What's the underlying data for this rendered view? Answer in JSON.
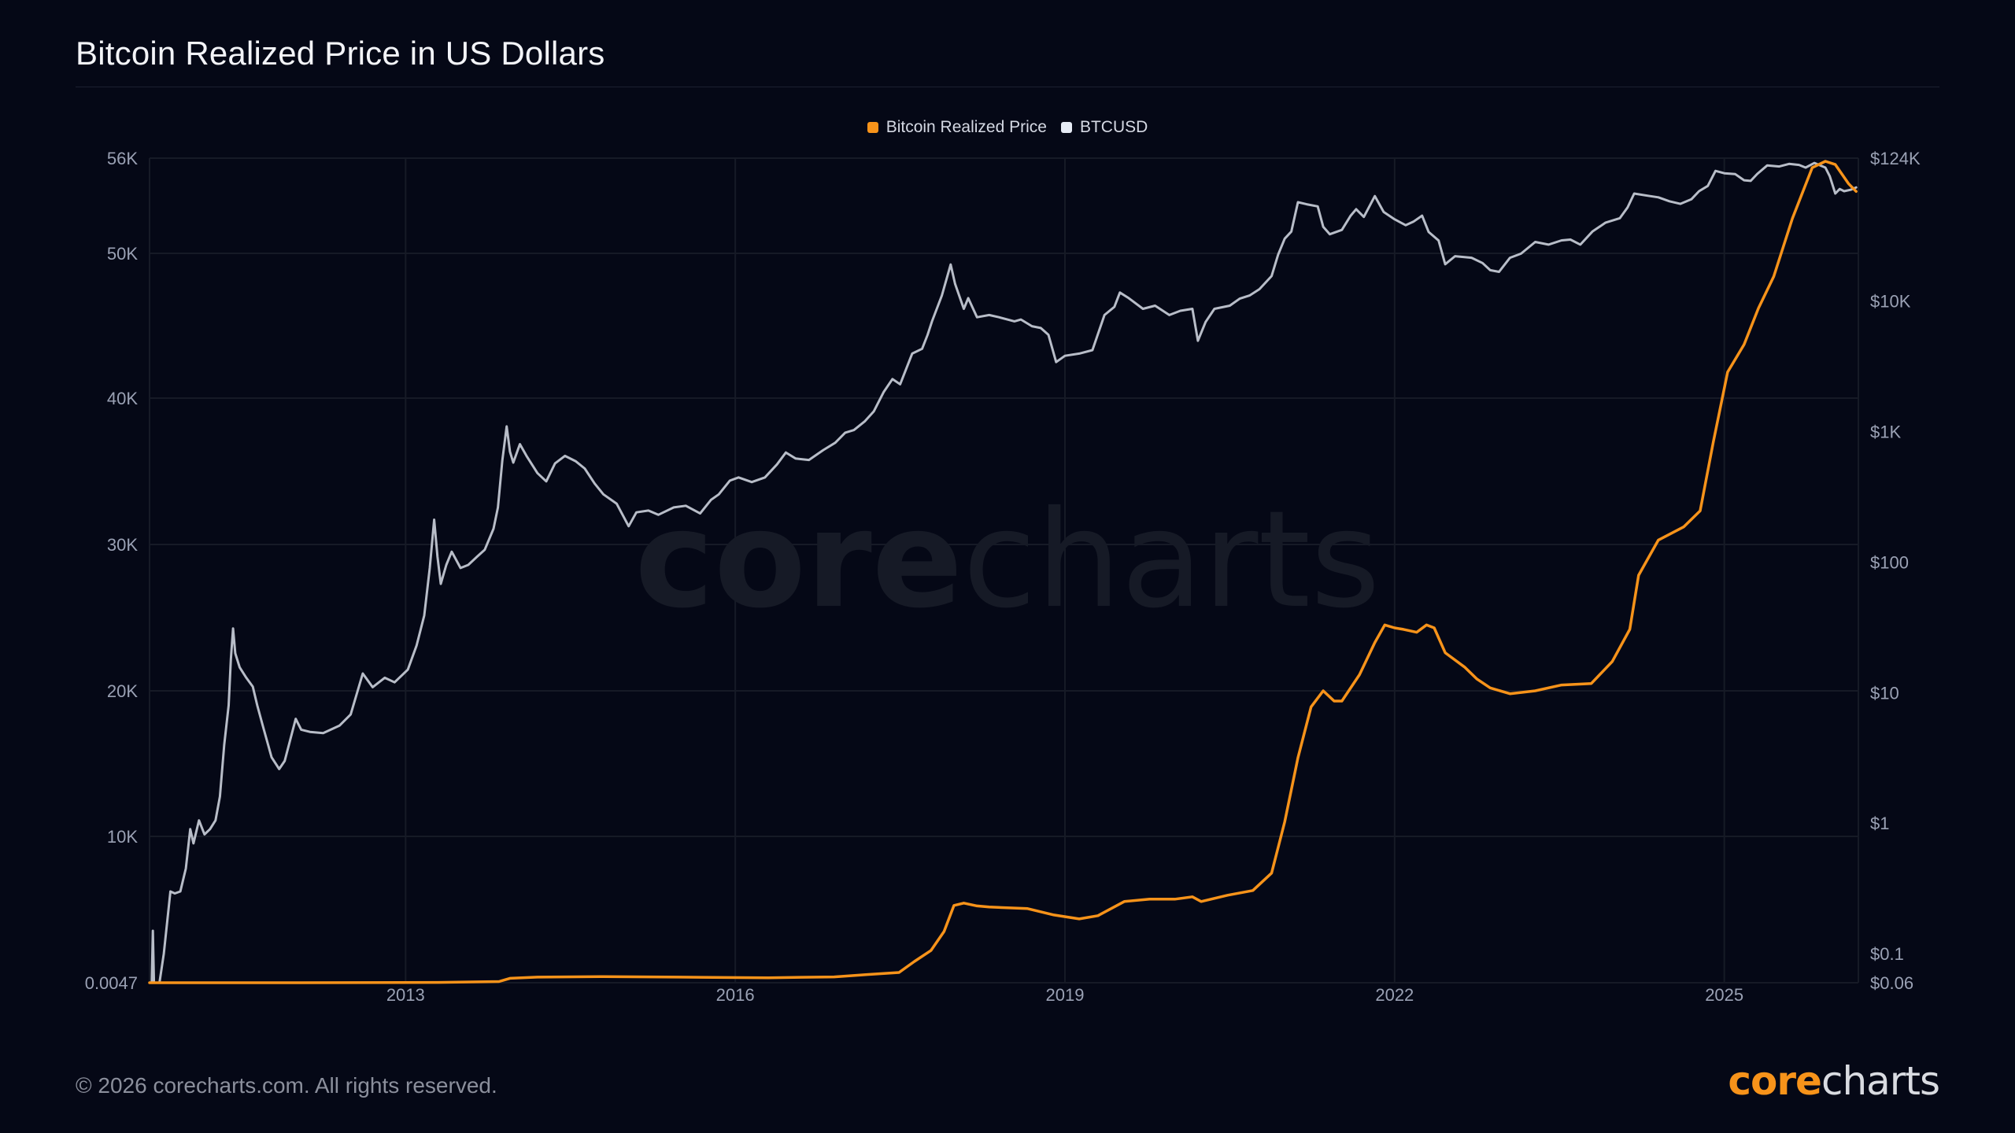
{
  "title": "Bitcoin Realized Price in US Dollars",
  "footer": "© 2026 corecharts.com. All rights reserved.",
  "brand": {
    "part1": "core",
    "part2": "charts"
  },
  "watermark": {
    "part1": "core",
    "part2": "charts"
  },
  "colors": {
    "realized": "#f7931a",
    "btcusd": "#b8bdc8",
    "background": "#050816",
    "grid": "#161a26",
    "brand_light": "#d9dbe1"
  },
  "chart_data": {
    "type": "line",
    "title": "Bitcoin Realized Price in US Dollars",
    "legend": {
      "placement": "top-center",
      "entries": [
        "Bitcoin Realized Price",
        "BTCUSD"
      ]
    },
    "x_axis": {
      "type": "time",
      "range": [
        2010.67,
        2026.22
      ],
      "ticks": [
        2013,
        2016,
        2019,
        2022,
        2025
      ],
      "tick_labels": [
        "2013",
        "2016",
        "2019",
        "2022",
        "2025"
      ]
    },
    "y_left": {
      "type": "linear",
      "ticks": [
        0.0047,
        10000,
        20000,
        30000,
        40000,
        50000,
        56000
      ],
      "tick_labels": [
        "0.0047",
        "10K",
        "20K",
        "30K",
        "40K",
        "50K",
        "56K"
      ],
      "grid": true
    },
    "y_right": {
      "type": "log",
      "ticks": [
        0.06,
        0.1,
        1,
        10,
        100,
        1000,
        10000,
        124000
      ],
      "tick_labels": [
        "$0.06",
        "$0.1",
        "$1",
        "$10",
        "$100",
        "$1K",
        "$10K",
        "$124K"
      ],
      "range": [
        0.06,
        124000
      ]
    },
    "series": [
      {
        "name": "Bitcoin Realized Price",
        "axis": "left",
        "color": "#f7931a",
        "points": [
          [
            2010.67,
            0.0047
          ],
          [
            2011.5,
            2
          ],
          [
            2012.5,
            5
          ],
          [
            2013.3,
            20
          ],
          [
            2013.85,
            80
          ],
          [
            2013.95,
            300
          ],
          [
            2014.2,
            380
          ],
          [
            2014.8,
            420
          ],
          [
            2015.5,
            380
          ],
          [
            2016.3,
            340
          ],
          [
            2016.9,
            400
          ],
          [
            2017.2,
            560
          ],
          [
            2017.49,
            700
          ],
          [
            2017.63,
            1450
          ],
          [
            2017.78,
            2200
          ],
          [
            2017.9,
            3500
          ],
          [
            2017.99,
            5280
          ],
          [
            2018.08,
            5440
          ],
          [
            2018.2,
            5250
          ],
          [
            2018.31,
            5170
          ],
          [
            2018.66,
            5065
          ],
          [
            2018.9,
            4630
          ],
          [
            2019.13,
            4360
          ],
          [
            2019.3,
            4580
          ],
          [
            2019.54,
            5550
          ],
          [
            2019.77,
            5710
          ],
          [
            2020.0,
            5710
          ],
          [
            2020.16,
            5870
          ],
          [
            2020.24,
            5550
          ],
          [
            2020.48,
            5980
          ],
          [
            2020.71,
            6300
          ],
          [
            2020.88,
            7490
          ],
          [
            2021.0,
            11000
          ],
          [
            2021.12,
            15400
          ],
          [
            2021.24,
            18900
          ],
          [
            2021.35,
            20000
          ],
          [
            2021.45,
            19300
          ],
          [
            2021.52,
            19300
          ],
          [
            2021.68,
            21100
          ],
          [
            2021.82,
            23300
          ],
          [
            2021.91,
            24500
          ],
          [
            2022.0,
            24300
          ],
          [
            2022.08,
            24200
          ],
          [
            2022.2,
            24000
          ],
          [
            2022.29,
            24500
          ],
          [
            2022.36,
            24300
          ],
          [
            2022.46,
            22600
          ],
          [
            2022.64,
            21600
          ],
          [
            2022.75,
            20800
          ],
          [
            2022.87,
            20200
          ],
          [
            2023.05,
            19800
          ],
          [
            2023.28,
            20000
          ],
          [
            2023.52,
            20400
          ],
          [
            2023.79,
            20500
          ],
          [
            2023.98,
            22000
          ],
          [
            2024.14,
            24200
          ],
          [
            2024.22,
            27900
          ],
          [
            2024.4,
            30300
          ],
          [
            2024.63,
            31200
          ],
          [
            2024.78,
            32300
          ],
          [
            2024.9,
            37000
          ],
          [
            2025.03,
            41800
          ],
          [
            2025.18,
            43700
          ],
          [
            2025.31,
            46200
          ],
          [
            2025.45,
            48400
          ],
          [
            2025.62,
            52200
          ],
          [
            2025.8,
            55400
          ],
          [
            2025.92,
            55800
          ],
          [
            2026.01,
            55600
          ],
          [
            2026.13,
            54400
          ],
          [
            2026.2,
            53900
          ]
        ]
      },
      {
        "name": "BTCUSD",
        "axis": "right",
        "color": "#b8bdc8",
        "points": [
          [
            2010.67,
            0.06
          ],
          [
            2010.69,
            0.06
          ],
          [
            2010.7,
            0.15
          ],
          [
            2010.71,
            0.06
          ],
          [
            2010.76,
            0.06
          ],
          [
            2010.8,
            0.1
          ],
          [
            2010.86,
            0.3
          ],
          [
            2010.9,
            0.29
          ],
          [
            2010.95,
            0.3
          ],
          [
            2011.0,
            0.45
          ],
          [
            2011.04,
            0.9
          ],
          [
            2011.07,
            0.7
          ],
          [
            2011.12,
            1.05
          ],
          [
            2011.17,
            0.82
          ],
          [
            2011.22,
            0.9
          ],
          [
            2011.27,
            1.05
          ],
          [
            2011.31,
            1.6
          ],
          [
            2011.35,
            4.0
          ],
          [
            2011.39,
            8.0
          ],
          [
            2011.41,
            18
          ],
          [
            2011.43,
            31
          ],
          [
            2011.45,
            20
          ],
          [
            2011.49,
            15.6
          ],
          [
            2011.55,
            13
          ],
          [
            2011.61,
            11.1
          ],
          [
            2011.65,
            8
          ],
          [
            2011.7,
            5.6
          ],
          [
            2011.78,
            3.2
          ],
          [
            2011.85,
            2.6
          ],
          [
            2011.9,
            3.0
          ],
          [
            2012.0,
            6.3
          ],
          [
            2012.05,
            5.2
          ],
          [
            2012.13,
            5.0
          ],
          [
            2012.25,
            4.9
          ],
          [
            2012.4,
            5.6
          ],
          [
            2012.5,
            6.8
          ],
          [
            2012.61,
            14
          ],
          [
            2012.7,
            11
          ],
          [
            2012.81,
            13
          ],
          [
            2012.9,
            12
          ],
          [
            2013.02,
            15
          ],
          [
            2013.1,
            23
          ],
          [
            2013.17,
            39
          ],
          [
            2013.22,
            90
          ],
          [
            2013.26,
            211
          ],
          [
            2013.29,
            110
          ],
          [
            2013.32,
            68
          ],
          [
            2013.37,
            95
          ],
          [
            2013.42,
            120
          ],
          [
            2013.5,
            90
          ],
          [
            2013.57,
            95
          ],
          [
            2013.65,
            110
          ],
          [
            2013.72,
            124
          ],
          [
            2013.8,
            180
          ],
          [
            2013.84,
            262
          ],
          [
            2013.88,
            600
          ],
          [
            2013.92,
            1094
          ],
          [
            2013.95,
            700
          ],
          [
            2013.98,
            577
          ],
          [
            2014.04,
            800
          ],
          [
            2014.1,
            650
          ],
          [
            2014.2,
            480
          ],
          [
            2014.28,
            415
          ],
          [
            2014.36,
            570
          ],
          [
            2014.45,
            650
          ],
          [
            2014.55,
            590
          ],
          [
            2014.63,
            520
          ],
          [
            2014.72,
            400
          ],
          [
            2014.8,
            330
          ],
          [
            2014.92,
            280
          ],
          [
            2015.03,
            188
          ],
          [
            2015.1,
            240
          ],
          [
            2015.21,
            248
          ],
          [
            2015.3,
            230
          ],
          [
            2015.44,
            262
          ],
          [
            2015.55,
            270
          ],
          [
            2015.68,
            236
          ],
          [
            2015.78,
            300
          ],
          [
            2015.85,
            330
          ],
          [
            2015.95,
            420
          ],
          [
            2016.03,
            445
          ],
          [
            2016.15,
            410
          ],
          [
            2016.27,
            445
          ],
          [
            2016.38,
            560
          ],
          [
            2016.46,
            690
          ],
          [
            2016.55,
            620
          ],
          [
            2016.67,
            605
          ],
          [
            2016.8,
            720
          ],
          [
            2016.91,
            820
          ],
          [
            2017.0,
            980
          ],
          [
            2017.08,
            1025
          ],
          [
            2017.18,
            1200
          ],
          [
            2017.26,
            1425
          ],
          [
            2017.35,
            2000
          ],
          [
            2017.43,
            2520
          ],
          [
            2017.5,
            2300
          ],
          [
            2017.61,
            3950
          ],
          [
            2017.7,
            4300
          ],
          [
            2017.75,
            5500
          ],
          [
            2017.79,
            6980
          ],
          [
            2017.88,
            11000
          ],
          [
            2017.96,
            19000
          ],
          [
            2018.0,
            13500
          ],
          [
            2018.08,
            8700
          ],
          [
            2018.12,
            10500
          ],
          [
            2018.2,
            7500
          ],
          [
            2018.31,
            7800
          ],
          [
            2018.4,
            7500
          ],
          [
            2018.54,
            6980
          ],
          [
            2018.6,
            7200
          ],
          [
            2018.7,
            6400
          ],
          [
            2018.78,
            6200
          ],
          [
            2018.85,
            5500
          ],
          [
            2018.92,
            3400
          ],
          [
            2019.0,
            3800
          ],
          [
            2019.13,
            3950
          ],
          [
            2019.25,
            4200
          ],
          [
            2019.36,
            7800
          ],
          [
            2019.45,
            9000
          ],
          [
            2019.5,
            11600
          ],
          [
            2019.58,
            10500
          ],
          [
            2019.71,
            8700
          ],
          [
            2019.82,
            9200
          ],
          [
            2019.95,
            7800
          ],
          [
            2020.05,
            8400
          ],
          [
            2020.16,
            8700
          ],
          [
            2020.21,
            4950
          ],
          [
            2020.28,
            6900
          ],
          [
            2020.36,
            8700
          ],
          [
            2020.5,
            9200
          ],
          [
            2020.59,
            10400
          ],
          [
            2020.68,
            11000
          ],
          [
            2020.77,
            12300
          ],
          [
            2020.88,
            15500
          ],
          [
            2020.94,
            22600
          ],
          [
            2021.0,
            30000
          ],
          [
            2021.06,
            34000
          ],
          [
            2021.12,
            57000
          ],
          [
            2021.2,
            55000
          ],
          [
            2021.3,
            53000
          ],
          [
            2021.35,
            37000
          ],
          [
            2021.41,
            32400
          ],
          [
            2021.52,
            35000
          ],
          [
            2021.6,
            45000
          ],
          [
            2021.65,
            50400
          ],
          [
            2021.72,
            44000
          ],
          [
            2021.82,
            63500
          ],
          [
            2021.9,
            48000
          ],
          [
            2022.0,
            42200
          ],
          [
            2022.1,
            38000
          ],
          [
            2022.17,
            40400
          ],
          [
            2022.25,
            45000
          ],
          [
            2022.31,
            33700
          ],
          [
            2022.4,
            29000
          ],
          [
            2022.46,
            19100
          ],
          [
            2022.55,
            22000
          ],
          [
            2022.7,
            21400
          ],
          [
            2022.8,
            19500
          ],
          [
            2022.87,
            17200
          ],
          [
            2022.95,
            16700
          ],
          [
            2023.05,
            21400
          ],
          [
            2023.15,
            23000
          ],
          [
            2023.28,
            28300
          ],
          [
            2023.4,
            27000
          ],
          [
            2023.52,
            29100
          ],
          [
            2023.6,
            29500
          ],
          [
            2023.69,
            27000
          ],
          [
            2023.8,
            34000
          ],
          [
            2023.92,
            39800
          ],
          [
            2024.05,
            43000
          ],
          [
            2024.12,
            52000
          ],
          [
            2024.18,
            66400
          ],
          [
            2024.3,
            64000
          ],
          [
            2024.4,
            62100
          ],
          [
            2024.5,
            58000
          ],
          [
            2024.6,
            55400
          ],
          [
            2024.7,
            60000
          ],
          [
            2024.77,
            69200
          ],
          [
            2024.85,
            76000
          ],
          [
            2024.92,
            99000
          ],
          [
            2025.0,
            95000
          ],
          [
            2025.1,
            93500
          ],
          [
            2025.18,
            84000
          ],
          [
            2025.24,
            83000
          ],
          [
            2025.3,
            94000
          ],
          [
            2025.39,
            109000
          ],
          [
            2025.5,
            107000
          ],
          [
            2025.59,
            112000
          ],
          [
            2025.68,
            110000
          ],
          [
            2025.74,
            105000
          ],
          [
            2025.82,
            114000
          ],
          [
            2025.92,
            105000
          ],
          [
            2025.96,
            90000
          ],
          [
            2026.01,
            66400
          ],
          [
            2026.05,
            72000
          ],
          [
            2026.09,
            69200
          ],
          [
            2026.15,
            71000
          ],
          [
            2026.2,
            74000
          ]
        ]
      }
    ]
  }
}
